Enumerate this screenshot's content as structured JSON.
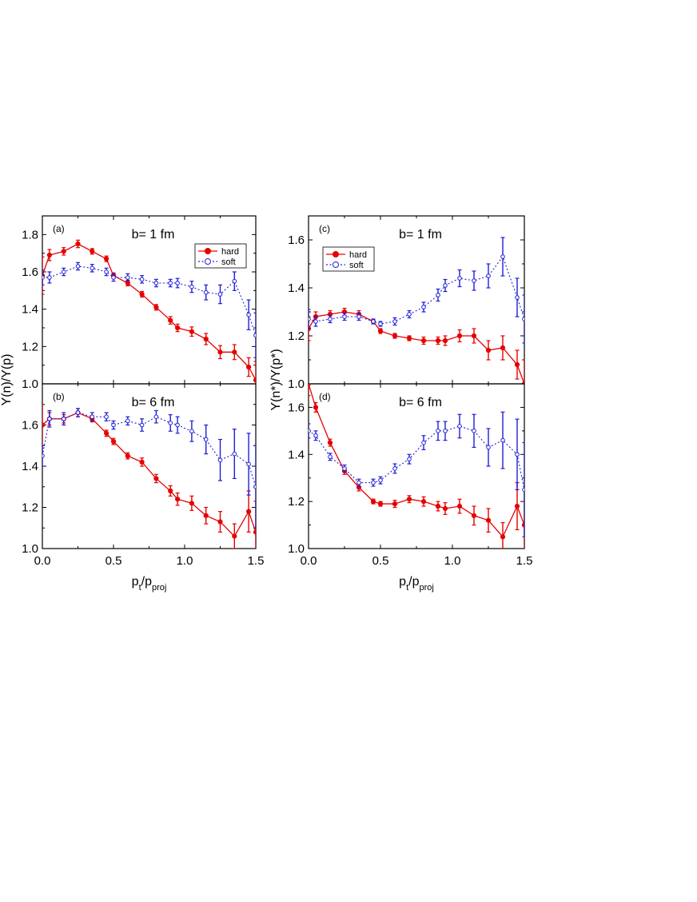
{
  "colors": {
    "hard": "#e60000",
    "soft": "#1f1fd6",
    "axis": "#000000"
  },
  "chart_data": [
    {
      "type": "line",
      "panel": "(a)",
      "annotation": "b= 1 fm",
      "ylabel": "Y(n)/Y(p)",
      "xlabel": "",
      "xlim": [
        0.0,
        1.5
      ],
      "ylim": [
        1.0,
        1.9
      ],
      "yticks": [
        "1.0",
        "1.2",
        "1.4",
        "1.6",
        "1.8"
      ],
      "xticks": [],
      "legend": {
        "position": "top-right",
        "entries": [
          "hard",
          "soft"
        ]
      },
      "series": [
        {
          "name": "hard",
          "x": [
            0.0,
            0.05,
            0.15,
            0.25,
            0.35,
            0.45,
            0.5,
            0.6,
            0.7,
            0.8,
            0.9,
            0.95,
            1.05,
            1.15,
            1.25,
            1.35,
            1.45,
            1.5
          ],
          "y": [
            1.58,
            1.69,
            1.71,
            1.75,
            1.71,
            1.67,
            1.58,
            1.54,
            1.48,
            1.41,
            1.34,
            1.3,
            1.28,
            1.24,
            1.17,
            1.17,
            1.09,
            1.02
          ],
          "err": [
            0.1,
            0.03,
            0.02,
            0.02,
            0.015,
            0.015,
            0.015,
            0.015,
            0.015,
            0.015,
            0.02,
            0.02,
            0.025,
            0.03,
            0.035,
            0.04,
            0.05,
            0.1
          ]
        },
        {
          "name": "soft",
          "x": [
            0.0,
            0.05,
            0.15,
            0.25,
            0.35,
            0.45,
            0.5,
            0.6,
            0.7,
            0.8,
            0.9,
            0.95,
            1.05,
            1.15,
            1.25,
            1.35,
            1.45,
            1.5
          ],
          "y": [
            1.57,
            1.57,
            1.6,
            1.63,
            1.62,
            1.6,
            1.57,
            1.57,
            1.56,
            1.54,
            1.54,
            1.54,
            1.52,
            1.49,
            1.48,
            1.55,
            1.37,
            1.26
          ],
          "err": [
            0.04,
            0.03,
            0.02,
            0.02,
            0.02,
            0.02,
            0.02,
            0.02,
            0.02,
            0.02,
            0.02,
            0.025,
            0.03,
            0.04,
            0.05,
            0.05,
            0.08,
            0.12
          ]
        }
      ]
    },
    {
      "type": "line",
      "panel": "(b)",
      "annotation": "b= 6 fm",
      "ylabel": "",
      "xlabel": "p_t/p_proj",
      "xlim": [
        0.0,
        1.5
      ],
      "ylim": [
        1.0,
        1.8
      ],
      "yticks": [
        "1.0",
        "1.2",
        "1.4",
        "1.6"
      ],
      "xticks": [
        "0.0",
        "0.5",
        "1.0",
        "1.5"
      ],
      "series": [
        {
          "name": "hard",
          "x": [
            0.0,
            0.05,
            0.15,
            0.25,
            0.35,
            0.45,
            0.5,
            0.6,
            0.7,
            0.8,
            0.9,
            0.95,
            1.05,
            1.15,
            1.25,
            1.35,
            1.45,
            1.5
          ],
          "y": [
            1.6,
            1.63,
            1.63,
            1.66,
            1.63,
            1.56,
            1.52,
            1.45,
            1.42,
            1.34,
            1.28,
            1.24,
            1.22,
            1.16,
            1.13,
            1.06,
            1.18,
            1.08
          ],
          "err": [
            0.1,
            0.03,
            0.02,
            0.02,
            0.015,
            0.015,
            0.015,
            0.015,
            0.02,
            0.02,
            0.025,
            0.03,
            0.035,
            0.04,
            0.05,
            0.06,
            0.1,
            0.15
          ]
        },
        {
          "name": "soft",
          "x": [
            0.0,
            0.05,
            0.15,
            0.25,
            0.35,
            0.45,
            0.5,
            0.6,
            0.7,
            0.8,
            0.9,
            0.95,
            1.05,
            1.15,
            1.25,
            1.35,
            1.45,
            1.5
          ],
          "y": [
            1.45,
            1.63,
            1.63,
            1.66,
            1.64,
            1.64,
            1.6,
            1.62,
            1.6,
            1.64,
            1.61,
            1.6,
            1.57,
            1.53,
            1.43,
            1.46,
            1.41,
            1.3
          ],
          "err": [
            0.05,
            0.04,
            0.03,
            0.02,
            0.02,
            0.02,
            0.02,
            0.02,
            0.03,
            0.03,
            0.04,
            0.04,
            0.05,
            0.07,
            0.1,
            0.12,
            0.15,
            0.2
          ]
        }
      ]
    },
    {
      "type": "line",
      "panel": "(c)",
      "annotation": "b= 1 fm",
      "ylabel": "Y(n*)/Y(p*)",
      "xlabel": "",
      "xlim": [
        0.0,
        1.5
      ],
      "ylim": [
        1.0,
        1.7
      ],
      "yticks": [
        "1.0",
        "1.2",
        "1.4",
        "1.6"
      ],
      "xticks": [],
      "legend": {
        "position": "top-left",
        "entries": [
          "hard",
          "soft"
        ]
      },
      "series": [
        {
          "name": "hard",
          "x": [
            0.0,
            0.05,
            0.15,
            0.25,
            0.35,
            0.45,
            0.5,
            0.6,
            0.7,
            0.8,
            0.9,
            0.95,
            1.05,
            1.15,
            1.25,
            1.35,
            1.45,
            1.5
          ],
          "y": [
            1.23,
            1.28,
            1.29,
            1.3,
            1.29,
            1.26,
            1.22,
            1.2,
            1.19,
            1.18,
            1.18,
            1.18,
            1.2,
            1.2,
            1.14,
            1.15,
            1.08,
            1.0
          ],
          "err": [
            0.05,
            0.02,
            0.015,
            0.015,
            0.015,
            0.01,
            0.01,
            0.01,
            0.01,
            0.015,
            0.015,
            0.02,
            0.025,
            0.03,
            0.04,
            0.05,
            0.06,
            0.1
          ]
        },
        {
          "name": "soft",
          "x": [
            0.0,
            0.05,
            0.15,
            0.25,
            0.35,
            0.45,
            0.5,
            0.6,
            0.7,
            0.8,
            0.9,
            0.95,
            1.05,
            1.15,
            1.25,
            1.35,
            1.45,
            1.5
          ],
          "y": [
            1.27,
            1.26,
            1.27,
            1.28,
            1.28,
            1.26,
            1.25,
            1.26,
            1.29,
            1.32,
            1.37,
            1.41,
            1.44,
            1.43,
            1.45,
            1.53,
            1.36,
            1.27
          ],
          "err": [
            0.04,
            0.02,
            0.015,
            0.015,
            0.015,
            0.01,
            0.01,
            0.015,
            0.015,
            0.02,
            0.025,
            0.025,
            0.035,
            0.04,
            0.05,
            0.08,
            0.08,
            0.1
          ]
        }
      ]
    },
    {
      "type": "line",
      "panel": "(d)",
      "annotation": "b= 6 fm",
      "ylabel": "",
      "xlabel": "p_t/p_proj",
      "xlim": [
        0.0,
        1.5
      ],
      "ylim": [
        1.0,
        1.7
      ],
      "yticks": [
        "1.0",
        "1.2",
        "1.4",
        "1.6"
      ],
      "xticks": [
        "0.0",
        "0.5",
        "1.0",
        "1.5"
      ],
      "series": [
        {
          "name": "hard",
          "x": [
            0.0,
            0.05,
            0.15,
            0.25,
            0.35,
            0.45,
            0.5,
            0.6,
            0.7,
            0.8,
            0.9,
            0.95,
            1.05,
            1.15,
            1.25,
            1.35,
            1.45,
            1.5
          ],
          "y": [
            1.7,
            1.6,
            1.45,
            1.33,
            1.26,
            1.2,
            1.19,
            1.19,
            1.21,
            1.2,
            1.18,
            1.17,
            1.18,
            1.14,
            1.12,
            1.05,
            1.18,
            1.1
          ],
          "err": [
            0.05,
            0.02,
            0.015,
            0.015,
            0.015,
            0.01,
            0.01,
            0.015,
            0.015,
            0.02,
            0.02,
            0.025,
            0.03,
            0.04,
            0.05,
            0.06,
            0.1,
            0.15
          ]
        },
        {
          "name": "soft",
          "x": [
            0.0,
            0.05,
            0.15,
            0.25,
            0.35,
            0.45,
            0.5,
            0.6,
            0.7,
            0.8,
            0.9,
            0.95,
            1.05,
            1.15,
            1.25,
            1.35,
            1.45,
            1.5
          ],
          "y": [
            1.5,
            1.48,
            1.39,
            1.34,
            1.28,
            1.28,
            1.29,
            1.34,
            1.38,
            1.45,
            1.5,
            1.5,
            1.52,
            1.5,
            1.43,
            1.46,
            1.4,
            1.25
          ],
          "err": [
            0.03,
            0.02,
            0.015,
            0.015,
            0.015,
            0.015,
            0.015,
            0.02,
            0.02,
            0.03,
            0.04,
            0.04,
            0.05,
            0.07,
            0.08,
            0.12,
            0.15,
            0.2
          ]
        }
      ]
    }
  ]
}
